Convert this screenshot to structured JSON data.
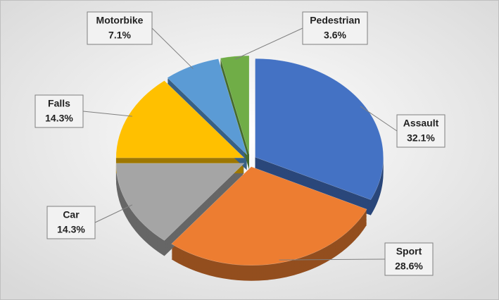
{
  "chart_data": {
    "type": "pie",
    "categories": [
      "Assault",
      "Sport",
      "Car",
      "Falls",
      "Motorbike",
      "Pedestrian"
    ],
    "values": [
      32.1,
      28.6,
      14.3,
      14.3,
      7.1,
      3.6
    ],
    "value_labels": [
      "32.1%",
      "28.6%",
      "14.3%",
      "14.3%",
      "7.1%",
      "3.6%"
    ],
    "colors": [
      "#4472c4",
      "#ed7d31",
      "#a5a5a5",
      "#ffc000",
      "#5b9bd5",
      "#70ad47"
    ]
  }
}
